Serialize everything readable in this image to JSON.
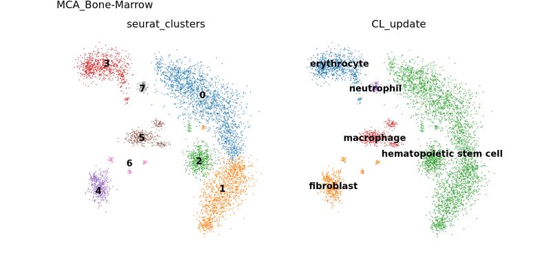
{
  "figure": {
    "title": "MCA_Bone-Marrow"
  },
  "colors": {
    "c0": "#1f77b4",
    "c1": "#ff7f0e",
    "c2": "#2ca02c",
    "c3": "#d62728",
    "c4": "#9467bd",
    "c5": "#8c564b",
    "c6": "#e377c2",
    "c7": "#7f7f7f"
  },
  "chart_data": [
    {
      "type": "scatter",
      "title": "seurat_clusters",
      "series": [
        {
          "name": "0",
          "color": "#1f77b4"
        },
        {
          "name": "1",
          "color": "#ff7f0e"
        },
        {
          "name": "2",
          "color": "#2ca02c"
        },
        {
          "name": "3",
          "color": "#d62728"
        },
        {
          "name": "4",
          "color": "#9467bd"
        },
        {
          "name": "5",
          "color": "#8c564b"
        },
        {
          "name": "6",
          "color": "#e377c2"
        },
        {
          "name": "7",
          "color": "#7f7f7f"
        }
      ],
      "labels": [
        "3",
        "7",
        "0",
        "5",
        "6",
        "2",
        "4",
        "1"
      ]
    },
    {
      "type": "scatter",
      "title": "CL_update",
      "series": [
        {
          "name": "erythrocyte",
          "color": "#1f77b4"
        },
        {
          "name": "neutrophil",
          "color": "#9467bd"
        },
        {
          "name": "macrophage",
          "color": "#d62728"
        },
        {
          "name": "hematopoietic stem cell",
          "color": "#2ca02c"
        },
        {
          "name": "fibroblast",
          "color": "#ff7f0e"
        }
      ],
      "labels": [
        "erythrocyte",
        "neutrophil",
        "macrophage",
        "hematopoietic stem cell",
        "fibroblast"
      ]
    }
  ]
}
